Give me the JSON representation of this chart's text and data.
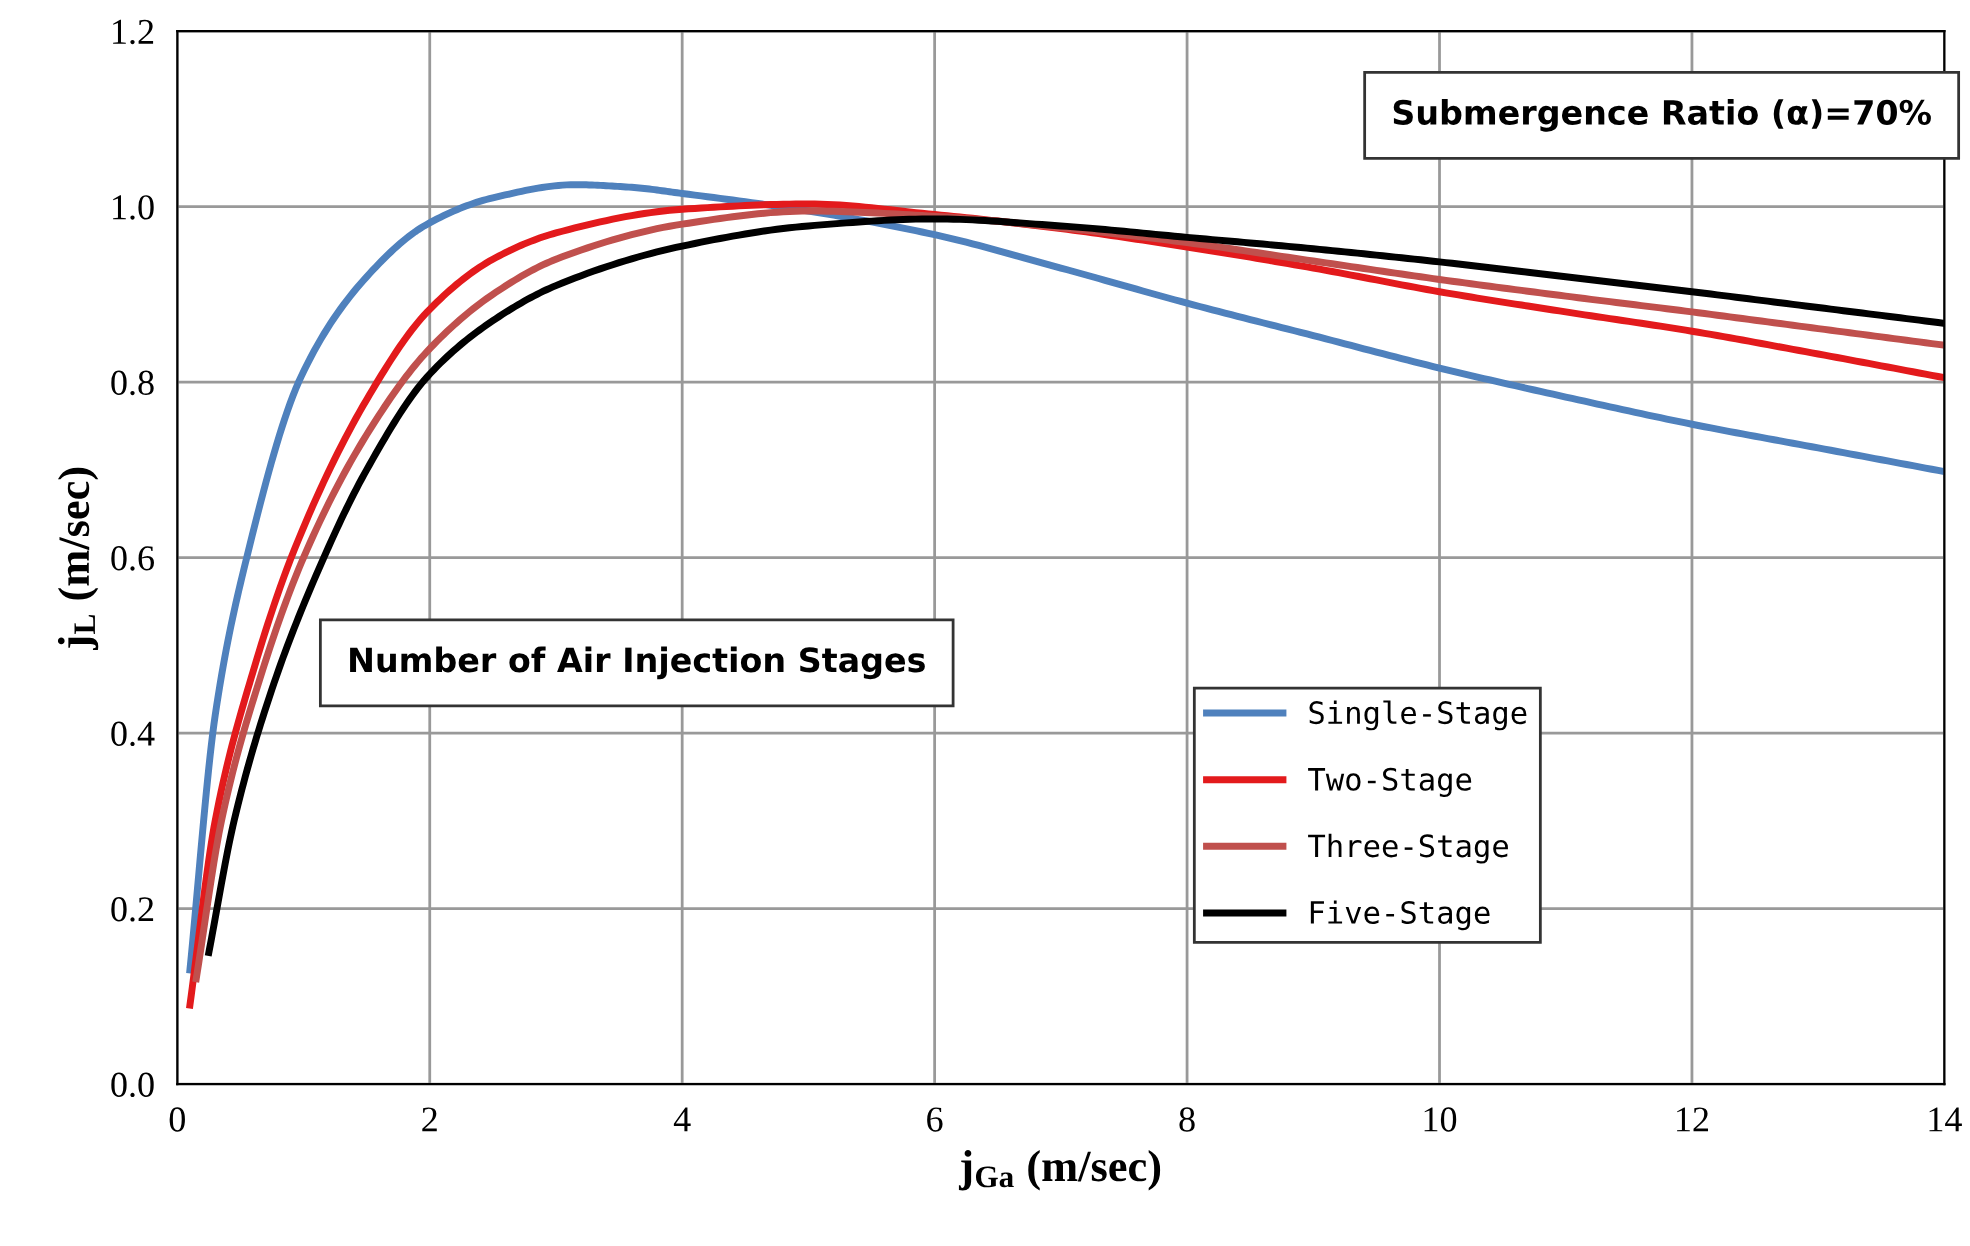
{
  "chart_data": {
    "type": "line",
    "xlabel": "j$_{Ga}$ (m/sec)",
    "ylabel": "j$_{L}$ (m/sec)",
    "xlim": [
      0,
      14
    ],
    "xticks": [
      0,
      2,
      4,
      6,
      8,
      10,
      12,
      14
    ],
    "ylim": [
      0,
      1.2
    ],
    "yticks": [
      {
        "value": 0,
        "label": "0.0"
      },
      0.2,
      0.4,
      0.6,
      0.8,
      {
        "value": 1,
        "label": "1.0"
      },
      1.2
    ],
    "grid": true,
    "legend": "bottom right",
    "legend_title": "Number of Air Injection Stages",
    "marker": "none",
    "line_style": "solid",
    "annotations": [
      "Submergence Ratio (α)=70%"
    ],
    "series": [
      {
        "name": "Single-Stage",
        "color": "#4f81bd",
        "x": [
          0.1,
          0.3,
          0.55,
          0.98,
          1.5,
          1.98,
          2.5,
          3.15,
          3.6,
          4,
          5,
          6,
          7,
          8,
          9,
          10,
          11,
          12,
          13,
          14
        ],
        "values": [
          0.13,
          0.42,
          0.6,
          0.806,
          0.92,
          0.98,
          1.01,
          1.025,
          1.022,
          1.015,
          0.995,
          0.968,
          0.93,
          0.89,
          0.853,
          0.816,
          0.783,
          0.752,
          0.725,
          0.698
        ]
      },
      {
        "name": "Two-Stage",
        "color": "#e31a1c",
        "x": [
          0.1,
          0.3,
          0.6,
          0.93,
          1.5,
          1.98,
          2.5,
          3,
          4,
          5,
          6,
          7,
          8,
          9,
          10,
          11,
          12,
          13,
          14
        ],
        "values": [
          0.09,
          0.3,
          0.47,
          0.61,
          0.78,
          0.88,
          0.94,
          0.97,
          0.997,
          1.003,
          0.991,
          0.975,
          0.954,
          0.93,
          0.903,
          0.88,
          0.858,
          0.832,
          0.805
        ]
      },
      {
        "name": "Three-Stage",
        "color": "#c0504d",
        "x": [
          0.15,
          0.35,
          0.65,
          1,
          1.5,
          1.98,
          2.5,
          3,
          4,
          5,
          6,
          7,
          8,
          9,
          10,
          11,
          12,
          13,
          14
        ],
        "values": [
          0.12,
          0.3,
          0.46,
          0.6,
          0.74,
          0.835,
          0.9,
          0.94,
          0.98,
          0.995,
          0.989,
          0.976,
          0.959,
          0.938,
          0.917,
          0.898,
          0.88,
          0.861,
          0.842
        ]
      },
      {
        "name": "Five-Stage",
        "color": "#000000",
        "x": [
          0.25,
          0.45,
          0.75,
          1.1,
          1.5,
          1.98,
          2.5,
          3,
          4,
          5,
          6,
          7,
          8,
          9,
          10,
          11,
          12,
          13,
          14
        ],
        "values": [
          0.15,
          0.3,
          0.45,
          0.58,
          0.7,
          0.806,
          0.87,
          0.91,
          0.955,
          0.978,
          0.986,
          0.978,
          0.965,
          0.952,
          0.937,
          0.92,
          0.903,
          0.885,
          0.867
        ]
      }
    ]
  }
}
